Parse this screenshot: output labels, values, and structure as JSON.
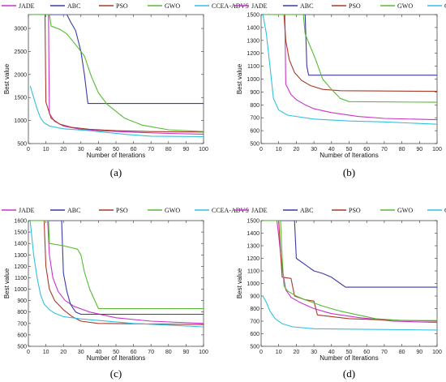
{
  "chart_data": [
    {
      "panel_label": "(a)",
      "type": "line",
      "xlabel": "Number of Iterations",
      "ylabel": "Best value",
      "xlim": [
        0,
        100
      ],
      "ylim": [
        500,
        3300
      ],
      "xticks": [
        0,
        10,
        20,
        30,
        40,
        50,
        60,
        70,
        80,
        90,
        100
      ],
      "yticks": [
        500,
        1000,
        1500,
        2000,
        2500,
        3000
      ],
      "grid": false,
      "legend": "top-outside",
      "series": [
        {
          "name": "JADE",
          "color": "#cc33cc",
          "points": [
            [
              1,
              3300
            ],
            [
              11.5,
              3300
            ],
            [
              12,
              1150
            ],
            [
              15,
              980
            ],
            [
              20,
              880
            ],
            [
              30,
              810
            ],
            [
              40,
              780
            ],
            [
              60,
              745
            ],
            [
              80,
              720
            ],
            [
              100,
              705
            ]
          ]
        },
        {
          "name": "ABC",
          "color": "#3a3aa8",
          "points": [
            [
              1,
              3300
            ],
            [
              22,
              3300
            ],
            [
              24,
              3150
            ],
            [
              27,
              2950
            ],
            [
              30,
              2500
            ],
            [
              32,
              2000
            ],
            [
              34,
              1370
            ],
            [
              100,
              1370
            ]
          ]
        },
        {
          "name": "PSO",
          "color": "#a93a2a",
          "points": [
            [
              1,
              3300
            ],
            [
              9.5,
              3300
            ],
            [
              10,
              1400
            ],
            [
              13,
              1050
            ],
            [
              18,
              920
            ],
            [
              25,
              850
            ],
            [
              35,
              810
            ],
            [
              50,
              780
            ],
            [
              70,
              760
            ],
            [
              100,
              750
            ]
          ]
        },
        {
          "name": "GWO",
          "color": "#55bb33",
          "points": [
            [
              1,
              3300
            ],
            [
              12,
              3300
            ],
            [
              13,
              3050
            ],
            [
              18,
              2980
            ],
            [
              22,
              2880
            ],
            [
              28,
              2600
            ],
            [
              32,
              2400
            ],
            [
              36,
              1950
            ],
            [
              40,
              1600
            ],
            [
              45,
              1350
            ],
            [
              55,
              1050
            ],
            [
              65,
              900
            ],
            [
              80,
              800
            ],
            [
              100,
              760
            ]
          ]
        },
        {
          "name": "CCEA-ADVS",
          "color": "#33c0e0",
          "points": [
            [
              1,
              1750
            ],
            [
              3,
              1500
            ],
            [
              5,
              1250
            ],
            [
              7,
              1050
            ],
            [
              9,
              950
            ],
            [
              12,
              880
            ],
            [
              20,
              820
            ],
            [
              35,
              780
            ],
            [
              55,
              700
            ],
            [
              70,
              660
            ],
            [
              100,
              650
            ]
          ]
        }
      ]
    },
    {
      "panel_label": "(b)",
      "type": "line",
      "xlabel": "Number of Iterations",
      "ylabel": "Best value",
      "xlim": [
        0,
        100
      ],
      "ylim": [
        500,
        1500
      ],
      "xticks": [
        0,
        10,
        20,
        30,
        40,
        50,
        60,
        70,
        80,
        90,
        100
      ],
      "yticks": [
        500,
        600,
        700,
        800,
        900,
        1000,
        1100,
        1200,
        1300,
        1400,
        1500
      ],
      "grid": false,
      "legend": "top-outside",
      "series": [
        {
          "name": "JADE",
          "color": "#cc33cc",
          "points": [
            [
              1,
              1500
            ],
            [
              13.5,
              1500
            ],
            [
              14,
              960
            ],
            [
              17,
              880
            ],
            [
              20,
              840
            ],
            [
              25,
              800
            ],
            [
              30,
              770
            ],
            [
              40,
              740
            ],
            [
              55,
              710
            ],
            [
              70,
              695
            ],
            [
              100,
              685
            ]
          ]
        },
        {
          "name": "ABC",
          "color": "#3a3aa8",
          "points": [
            [
              1,
              1500
            ],
            [
              25,
              1500
            ],
            [
              26,
              1100
            ],
            [
              27,
              1030
            ],
            [
              100,
              1030
            ]
          ]
        },
        {
          "name": "PSO",
          "color": "#a93a2a",
          "points": [
            [
              1,
              1500
            ],
            [
              13,
              1500
            ],
            [
              14,
              1300
            ],
            [
              16,
              1150
            ],
            [
              19,
              1050
            ],
            [
              23,
              990
            ],
            [
              28,
              950
            ],
            [
              35,
              920
            ],
            [
              45,
              910
            ],
            [
              100,
              905
            ]
          ]
        },
        {
          "name": "GWO",
          "color": "#55bb33",
          "points": [
            [
              1,
              1500
            ],
            [
              24,
              1500
            ],
            [
              25,
              1350
            ],
            [
              28,
              1250
            ],
            [
              31,
              1150
            ],
            [
              35,
              1000
            ],
            [
              40,
              920
            ],
            [
              45,
              850
            ],
            [
              50,
              825
            ],
            [
              100,
              820
            ]
          ]
        },
        {
          "name": "CCEA-ADVS",
          "color": "#33c0e0",
          "points": [
            [
              1,
              1500
            ],
            [
              3,
              1350
            ],
            [
              5,
              1100
            ],
            [
              7,
              850
            ],
            [
              10,
              760
            ],
            [
              15,
              720
            ],
            [
              30,
              690
            ],
            [
              50,
              675
            ],
            [
              70,
              668
            ],
            [
              100,
              650
            ]
          ]
        }
      ]
    },
    {
      "panel_label": "(c)",
      "type": "line",
      "xlabel": "Number of Iterations",
      "ylabel": "Best value",
      "xlim": [
        0,
        100
      ],
      "ylim": [
        500,
        1600
      ],
      "xticks": [
        0,
        10,
        20,
        30,
        40,
        50,
        60,
        70,
        80,
        90,
        100
      ],
      "yticks": [
        500,
        600,
        700,
        800,
        900,
        1000,
        1100,
        1200,
        1300,
        1400,
        1500,
        1600
      ],
      "grid": false,
      "legend": "top-outside",
      "series": [
        {
          "name": "JADE",
          "color": "#cc33cc",
          "points": [
            [
              1,
              1600
            ],
            [
              11,
              1600
            ],
            [
              12,
              1300
            ],
            [
              14,
              1100
            ],
            [
              17,
              980
            ],
            [
              21,
              900
            ],
            [
              26,
              850
            ],
            [
              35,
              800
            ],
            [
              50,
              750
            ],
            [
              70,
              720
            ],
            [
              100,
              700
            ]
          ]
        },
        {
          "name": "ABC",
          "color": "#3a3aa8",
          "points": [
            [
              1,
              1600
            ],
            [
              19,
              1600
            ],
            [
              20,
              1140
            ],
            [
              22,
              980
            ],
            [
              24,
              870
            ],
            [
              27,
              800
            ],
            [
              30,
              780
            ],
            [
              100,
              780
            ]
          ]
        },
        {
          "name": "PSO",
          "color": "#a93a2a",
          "points": [
            [
              1,
              1600
            ],
            [
              9,
              1600
            ],
            [
              10,
              1200
            ],
            [
              12,
              1000
            ],
            [
              15,
              900
            ],
            [
              20,
              820
            ],
            [
              25,
              760
            ],
            [
              30,
              720
            ],
            [
              40,
              700
            ],
            [
              100,
              690
            ]
          ]
        },
        {
          "name": "GWO",
          "color": "#55bb33",
          "points": [
            [
              1,
              1600
            ],
            [
              11.5,
              1600
            ],
            [
              12,
              1400
            ],
            [
              20,
              1380
            ],
            [
              28,
              1350
            ],
            [
              30,
              1300
            ],
            [
              32,
              1150
            ],
            [
              35,
              1000
            ],
            [
              40,
              830
            ],
            [
              100,
              830
            ]
          ]
        },
        {
          "name": "CCEA-ADVS",
          "color": "#33c0e0",
          "points": [
            [
              1,
              1600
            ],
            [
              3,
              1300
            ],
            [
              5,
              1100
            ],
            [
              7,
              950
            ],
            [
              9,
              870
            ],
            [
              12,
              820
            ],
            [
              15,
              790
            ],
            [
              20,
              760
            ],
            [
              30,
              740
            ],
            [
              60,
              700
            ],
            [
              100,
              670
            ]
          ]
        }
      ]
    },
    {
      "panel_label": "(d)",
      "type": "line",
      "xlabel": "Number of Iterations",
      "ylabel": "Best value",
      "xlim": [
        0,
        100
      ],
      "ylim": [
        500,
        1500
      ],
      "xticks": [
        0,
        10,
        20,
        30,
        40,
        50,
        60,
        70,
        80,
        90,
        100
      ],
      "yticks": [
        500,
        600,
        700,
        800,
        900,
        1000,
        1100,
        1200,
        1300,
        1400,
        1500
      ],
      "grid": false,
      "legend": "top-outside",
      "series": [
        {
          "name": "JADE",
          "color": "#cc33cc",
          "points": [
            [
              1,
              1500
            ],
            [
              9,
              1500
            ],
            [
              10,
              1380
            ],
            [
              12,
              1120
            ],
            [
              14,
              950
            ],
            [
              17,
              890
            ],
            [
              22,
              850
            ],
            [
              30,
              800
            ],
            [
              40,
              760
            ],
            [
              55,
              730
            ],
            [
              75,
              700
            ],
            [
              100,
              690
            ]
          ]
        },
        {
          "name": "ABC",
          "color": "#3a3aa8",
          "points": [
            [
              1,
              1500
            ],
            [
              19,
              1500
            ],
            [
              20,
              1200
            ],
            [
              25,
              1150
            ],
            [
              30,
              1100
            ],
            [
              35,
              1080
            ],
            [
              40,
              1050
            ],
            [
              45,
              1000
            ],
            [
              48,
              970
            ],
            [
              100,
              970
            ]
          ]
        },
        {
          "name": "PSO",
          "color": "#a93a2a",
          "points": [
            [
              1,
              1500
            ],
            [
              10,
              1500
            ],
            [
              11,
              1250
            ],
            [
              12,
              1050
            ],
            [
              17,
              1040
            ],
            [
              19,
              900
            ],
            [
              25,
              870
            ],
            [
              30,
              860
            ],
            [
              32,
              750
            ],
            [
              50,
              720
            ],
            [
              70,
              710
            ],
            [
              100,
              700
            ]
          ]
        },
        {
          "name": "GWO",
          "color": "#55bb33",
          "points": [
            [
              1,
              1500
            ],
            [
              11,
              1500
            ],
            [
              12,
              1200
            ],
            [
              13,
              980
            ],
            [
              15,
              940
            ],
            [
              20,
              900
            ],
            [
              25,
              870
            ],
            [
              35,
              820
            ],
            [
              45,
              780
            ],
            [
              55,
              750
            ],
            [
              65,
              720
            ],
            [
              80,
              705
            ],
            [
              100,
              705
            ]
          ]
        },
        {
          "name": "CCEA-ADVS",
          "color": "#33c0e0",
          "points": [
            [
              1,
              900
            ],
            [
              3,
              850
            ],
            [
              5,
              780
            ],
            [
              8,
              720
            ],
            [
              12,
              680
            ],
            [
              18,
              655
            ],
            [
              30,
              640
            ],
            [
              60,
              635
            ],
            [
              100,
              630
            ]
          ]
        }
      ]
    }
  ]
}
